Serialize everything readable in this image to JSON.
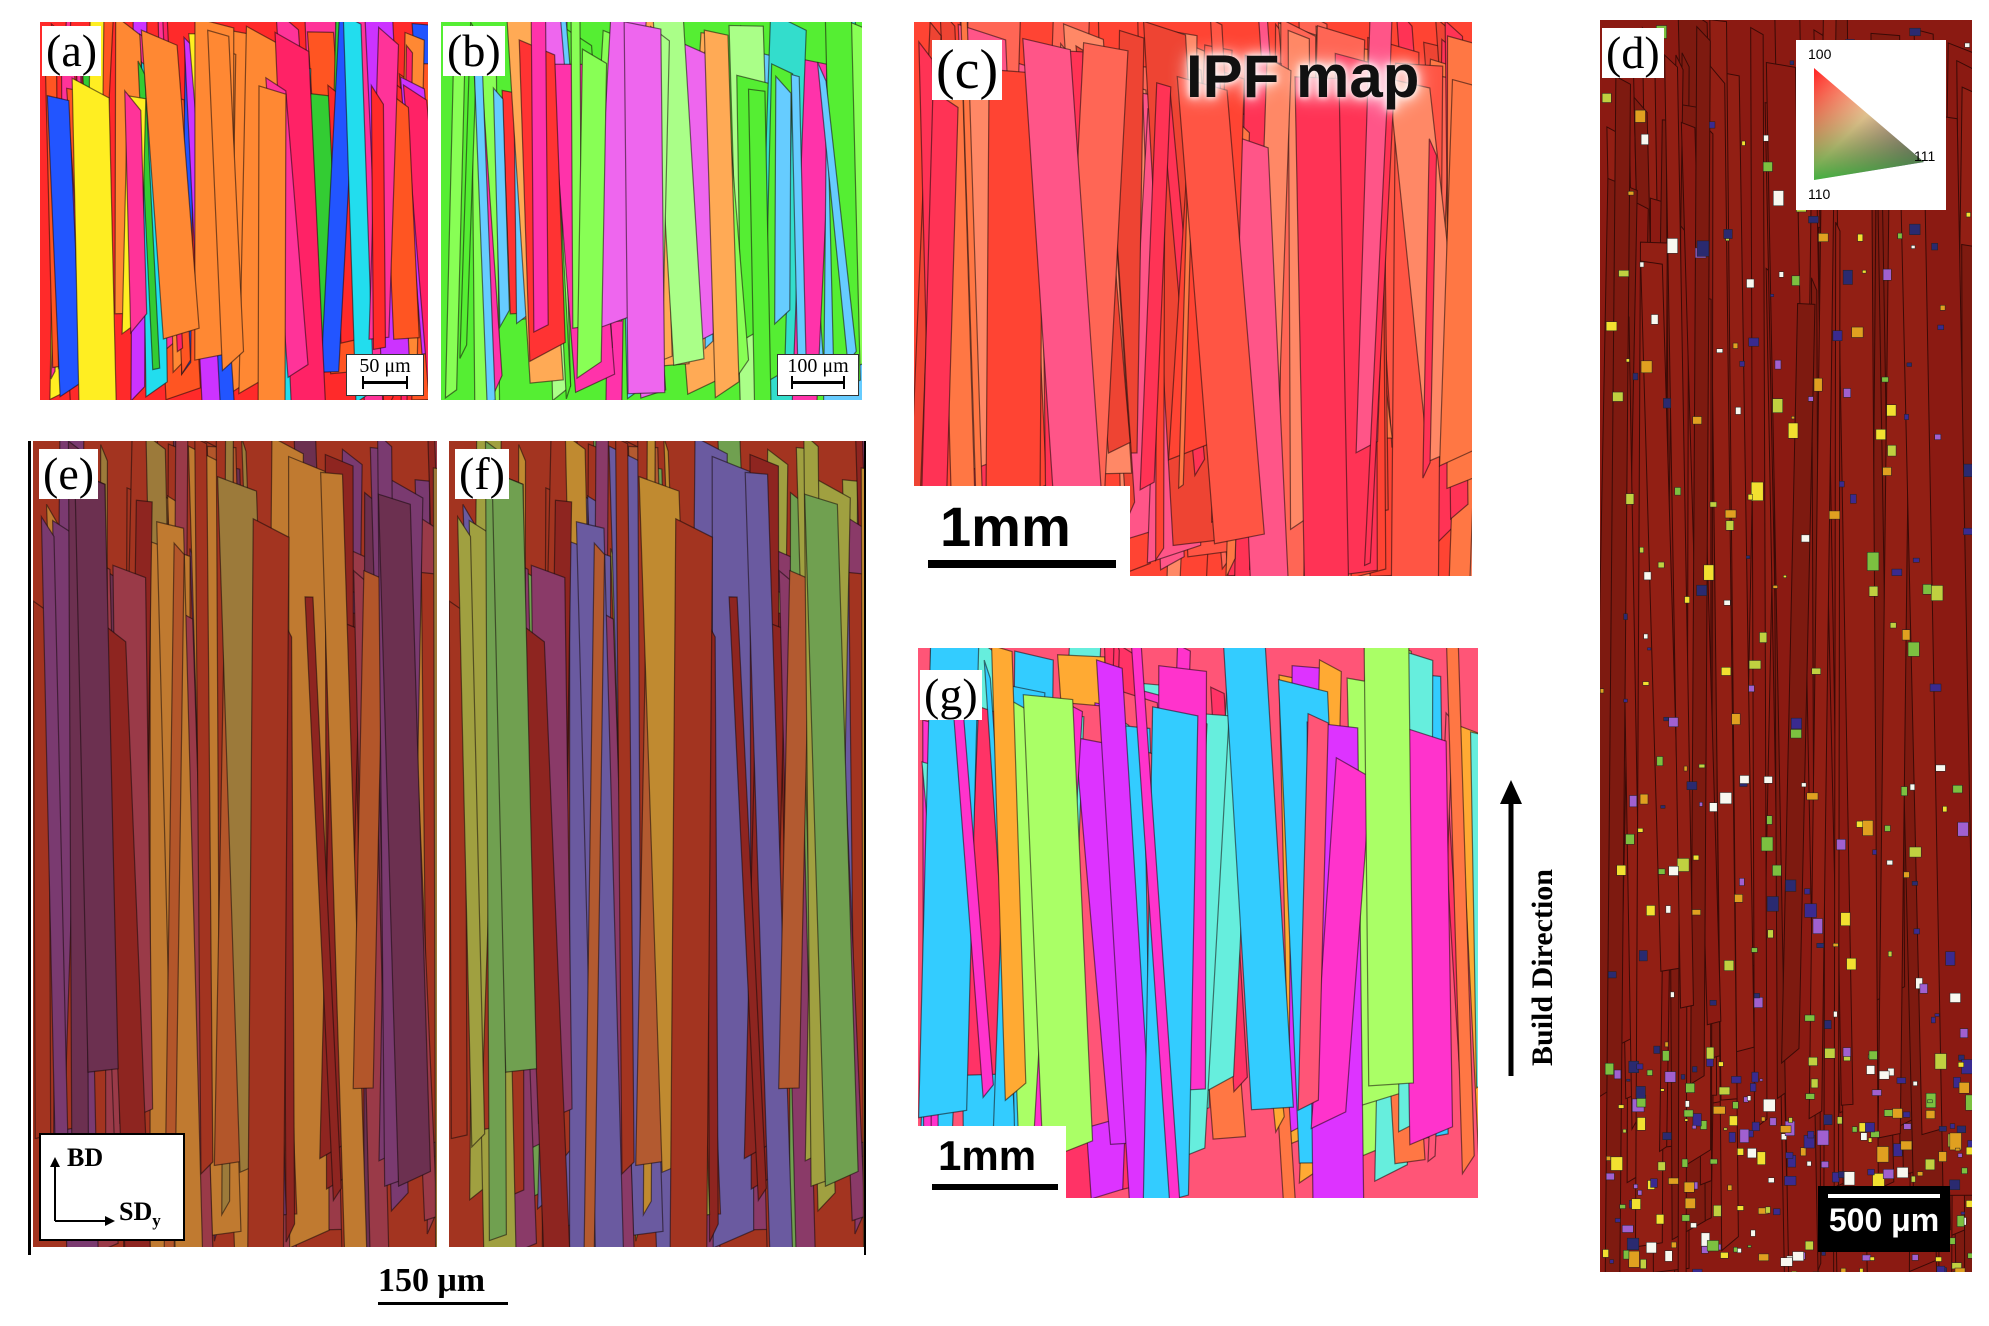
{
  "panels": {
    "a": {
      "label": "(a)",
      "scale_bar": "50 μm"
    },
    "b": {
      "label": "(b)",
      "scale_bar": "100 μm"
    },
    "c": {
      "label": "(c)",
      "title": "IPF map",
      "scale_bar": "1mm"
    },
    "d": {
      "label": "(d)",
      "scale_bar": "500 μm",
      "key": {
        "top": "100",
        "right": "111",
        "left": "110"
      }
    },
    "e": {
      "label": "(e)",
      "axis_y": "BD",
      "axis_x": "SD",
      "axis_x_sub": "y"
    },
    "f": {
      "label": "(f)"
    },
    "g": {
      "label": "(g)",
      "scale_bar": "1mm"
    }
  },
  "shared_scale_bar": "150 μm",
  "build_direction": "Build Direction",
  "palettes": {
    "a": [
      "#ff2a2a",
      "#ff5522",
      "#ff2266",
      "#33cc33",
      "#2255ff",
      "#ffee22",
      "#ff8833",
      "#22ddee",
      "#cc33ff",
      "#ff3399"
    ],
    "b": [
      "#55ee33",
      "#88ff55",
      "#ff33aa",
      "#ff3333",
      "#ee66ee",
      "#33ddcc",
      "#ffaa55",
      "#aaff88",
      "#66ccff"
    ],
    "c": [
      "#ff4433",
      "#ff5544",
      "#ff6655",
      "#ff7744",
      "#ff3355",
      "#ff5588",
      "#ee4433",
      "#ff8866"
    ],
    "d": [
      "#8b1a12",
      "#7e1a10",
      "#921f14"
    ],
    "e": [
      "#a33420",
      "#8e2520",
      "#b3562a",
      "#9a3a48",
      "#7a3a70",
      "#c07a30",
      "#9c7a3a",
      "#6c3050"
    ],
    "f": [
      "#a33420",
      "#8e2520",
      "#b35a30",
      "#8a3a68",
      "#a0a040",
      "#6a5aa0",
      "#c08a30",
      "#70a050"
    ],
    "g": [
      "#ff5577",
      "#ff33cc",
      "#dd33ff",
      "#ff7744",
      "#aaff66",
      "#66eedd",
      "#ffaa33",
      "#ff3366",
      "#33ccff"
    ]
  }
}
